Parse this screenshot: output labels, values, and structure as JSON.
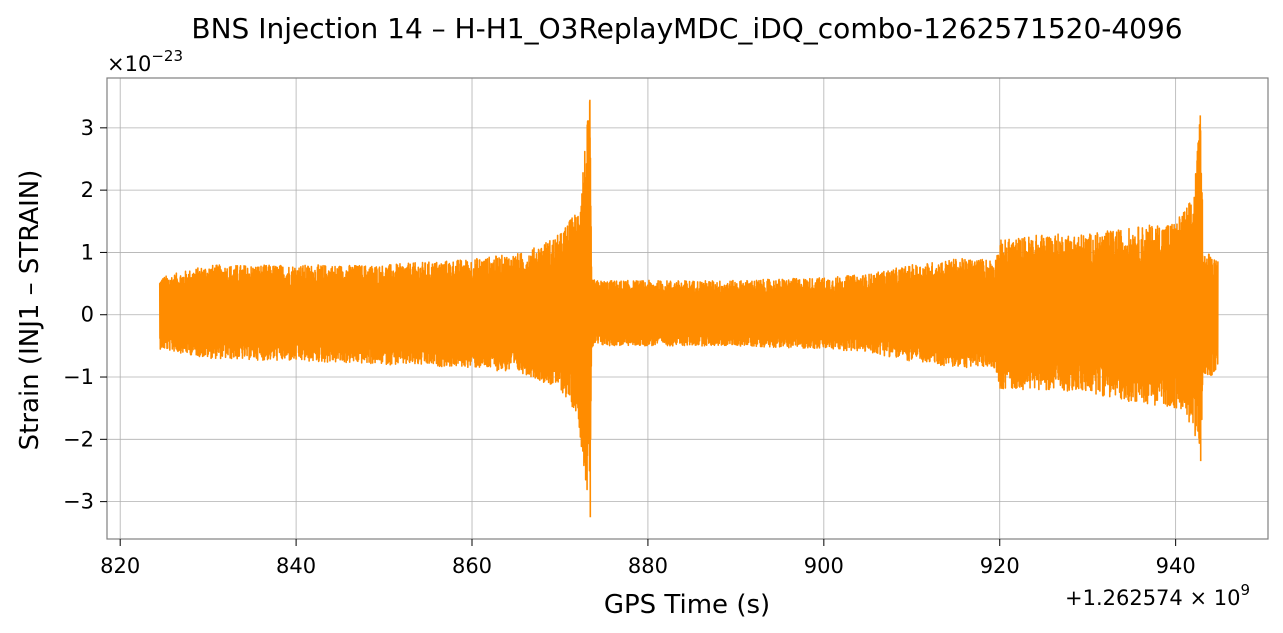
{
  "chart_data": {
    "type": "line",
    "title": "BNS Injection 14 – H-H1_O3ReplayMDC_iDQ_combo-1262571520-4096",
    "xlabel": "GPS Time (s)",
    "ylabel": "Strain (INJ1 – STRAIN)",
    "y_scale_label": "×10",
    "y_scale_exp": "−23",
    "x_offset_label": "+1.262574 × 10",
    "x_offset_exp": "9",
    "xlim": [
      818.5,
      950.5
    ],
    "ylim": [
      -3.6,
      3.8
    ],
    "xticks": [
      820,
      840,
      860,
      880,
      900,
      920,
      940
    ],
    "xtick_labels": [
      "820",
      "840",
      "860",
      "880",
      "900",
      "920",
      "940"
    ],
    "yticks": [
      -3,
      -2,
      -1,
      0,
      1,
      2,
      3
    ],
    "ytick_labels": [
      "−3",
      "−2",
      "−1",
      "0",
      "1",
      "2",
      "3"
    ],
    "grid": true,
    "series": [
      {
        "color": "#ff8c00",
        "envelope_x": [
          824.5,
          830,
          840,
          850,
          860,
          866,
          870,
          872,
          873.4,
          873.6,
          874,
          880,
          890,
          900,
          905,
          910,
          915,
          919.5,
          920,
          925,
          930,
          935,
          940,
          942,
          942.8,
          943.2,
          944,
          944.8
        ],
        "envelope_upper": [
          0.6,
          0.8,
          0.8,
          0.8,
          0.9,
          1.0,
          1.3,
          1.7,
          3.45,
          0.6,
          0.55,
          0.55,
          0.55,
          0.6,
          0.65,
          0.8,
          0.9,
          0.9,
          1.2,
          1.3,
          1.3,
          1.4,
          1.5,
          1.9,
          3.2,
          1.0,
          1.0,
          0.9
        ],
        "envelope_lower": [
          -0.55,
          -0.7,
          -0.75,
          -0.8,
          -0.85,
          -0.95,
          -1.2,
          -1.6,
          -3.25,
          -0.55,
          -0.5,
          -0.5,
          -0.5,
          -0.55,
          -0.6,
          -0.75,
          -0.85,
          -0.85,
          -1.2,
          -1.2,
          -1.25,
          -1.4,
          -1.5,
          -1.8,
          -2.35,
          -1.0,
          -1.0,
          -0.85
        ]
      }
    ]
  }
}
